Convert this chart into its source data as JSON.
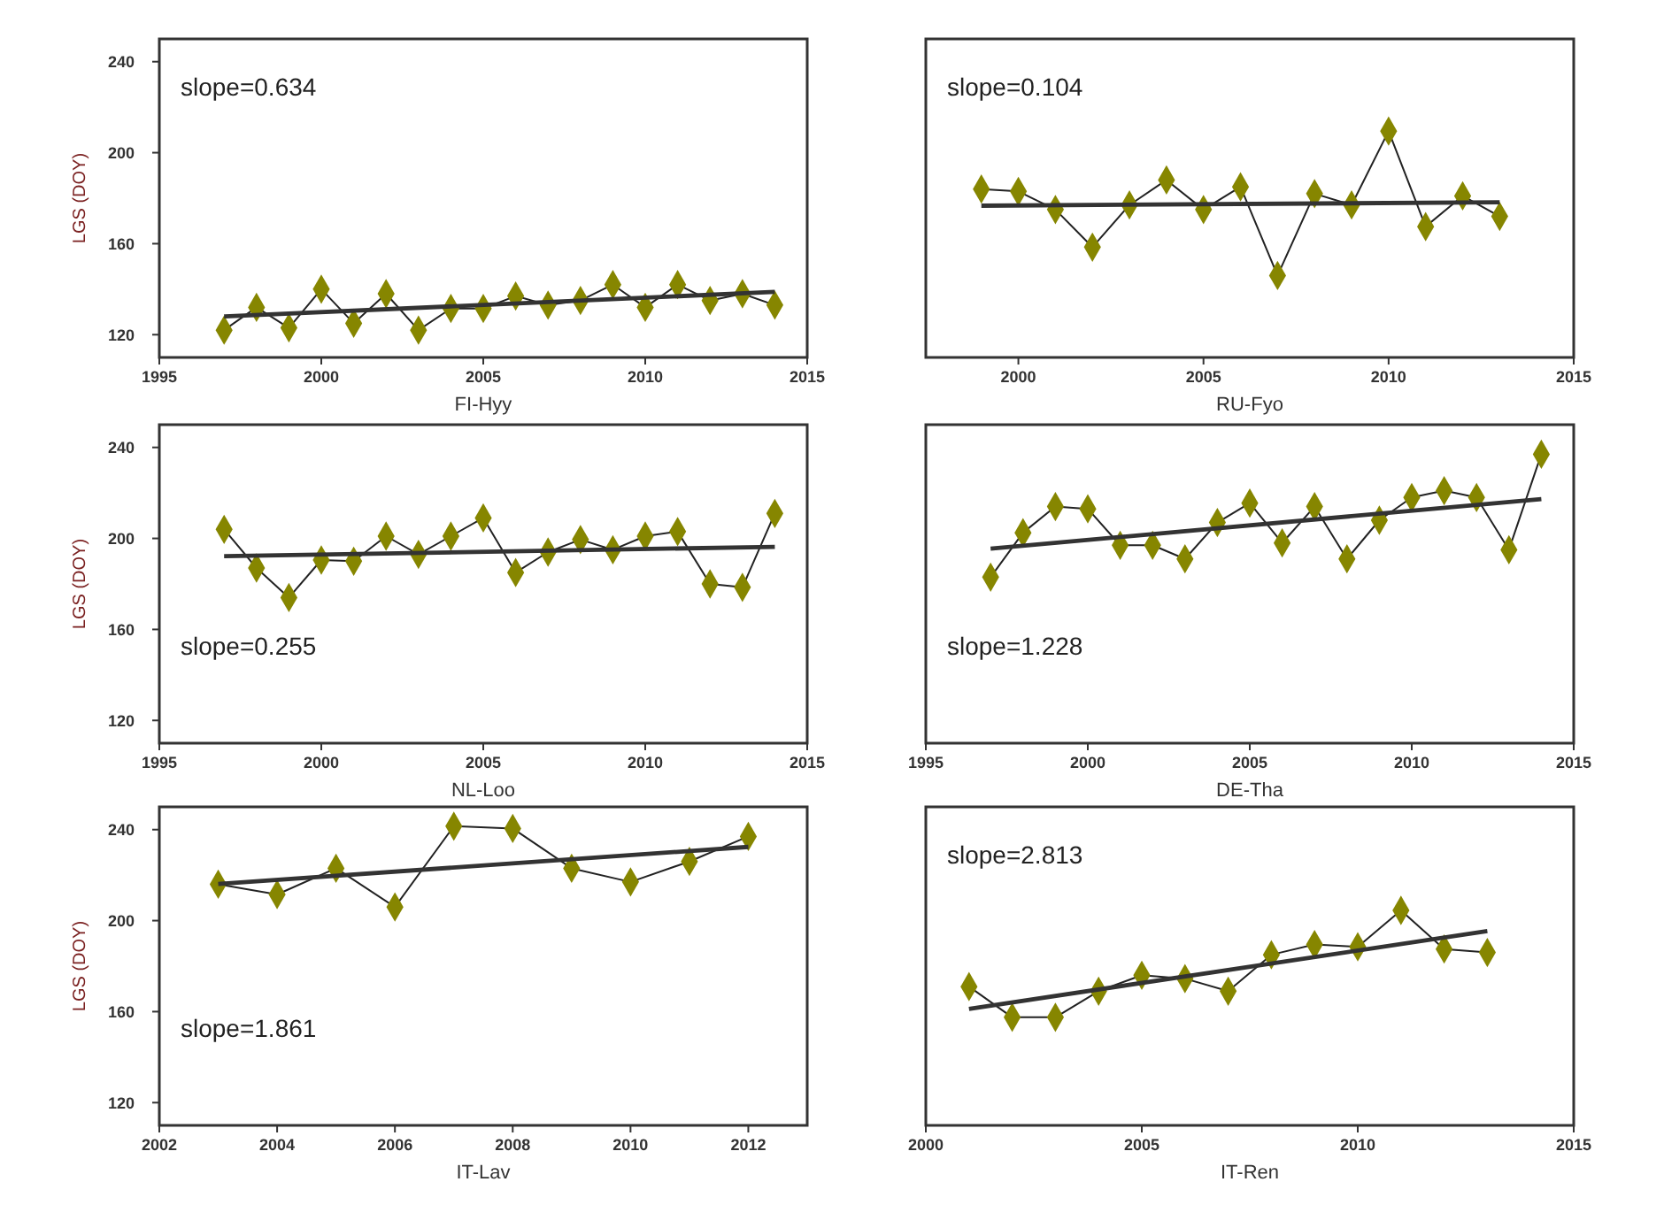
{
  "chart_data": [
    {
      "type": "line",
      "xlabel": "FI-Hyy",
      "ylabel": "LGS (DOY)",
      "annotations": [
        "slope=0.634"
      ],
      "xlim": [
        1995,
        2015
      ],
      "xticks": [
        1995,
        2000,
        2005,
        2010,
        2015
      ],
      "ylim": [
        110,
        250
      ],
      "yticks": [
        120,
        160,
        200,
        240
      ],
      "marker": "diamond",
      "series": [
        {
          "x": [
            1997,
            1998,
            1999,
            2000,
            2001,
            2002,
            2003,
            2004,
            2005,
            2006,
            2007,
            2008,
            2009,
            2010,
            2011,
            2012,
            2013,
            2014
          ],
          "values": [
            122,
            132,
            123,
            140,
            125,
            138,
            122,
            131.5,
            131.5,
            137,
            133,
            135,
            142,
            132,
            142,
            135,
            138,
            133
          ],
          "color": "#868600"
        },
        {
          "x": [
            1997,
            2014
          ],
          "values": [
            128,
            138.8
          ],
          "color": "#333333",
          "marker": "none"
        }
      ]
    },
    {
      "type": "line",
      "xlabel": "RU-Fyo",
      "annotations": [
        "slope=0.104"
      ],
      "xlim": [
        1997.5,
        2015
      ],
      "xticks": [
        2000,
        2005,
        2010,
        2015
      ],
      "ylim": [
        110,
        250
      ],
      "tick_labels": "x",
      "marker": "diamond",
      "series": [
        {
          "x": [
            1999,
            2000,
            2001,
            2002,
            2003,
            2004,
            2005,
            2006,
            2007,
            2008,
            2009,
            2010,
            2011,
            2012,
            2013
          ],
          "values": [
            184,
            183,
            175,
            158.5,
            177,
            188,
            175,
            185,
            146,
            182,
            177,
            209.5,
            167.5,
            181,
            172
          ],
          "color": "#868600"
        },
        {
          "x": [
            1999,
            2013
          ],
          "values": [
            176.7,
            178.2
          ],
          "color": "#333333",
          "marker": "none"
        }
      ]
    },
    {
      "type": "line",
      "xlabel": "NL-Loo",
      "ylabel": "LGS (DOY)",
      "annotations": [
        "slope=0.255"
      ],
      "xlim": [
        1995,
        2015
      ],
      "xticks": [
        1995,
        2000,
        2005,
        2010,
        2015
      ],
      "ylim": [
        110,
        250
      ],
      "yticks": [
        120,
        160,
        200,
        240
      ],
      "marker": "diamond",
      "series": [
        {
          "x": [
            1997,
            1998,
            1999,
            2000,
            2001,
            2002,
            2003,
            2004,
            2005,
            2006,
            2007,
            2008,
            2009,
            2010,
            2011,
            2012,
            2013,
            2014
          ],
          "values": [
            204,
            187,
            174,
            190.5,
            190,
            201,
            193,
            201,
            209,
            185,
            194,
            199.5,
            195,
            201,
            203,
            180,
            178.5,
            211
          ],
          "color": "#868600"
        },
        {
          "x": [
            1997,
            2014
          ],
          "values": [
            192.2,
            196.3
          ],
          "color": "#333333",
          "marker": "none"
        }
      ]
    },
    {
      "type": "line",
      "xlabel": "DE-Tha",
      "annotations": [
        "slope=1.228"
      ],
      "xlim": [
        1995,
        2015
      ],
      "xticks": [
        1995,
        2000,
        2005,
        2010,
        2015
      ],
      "ylim": [
        110,
        250
      ],
      "tick_labels": "x",
      "marker": "diamond",
      "series": [
        {
          "x": [
            1997,
            1998,
            1999,
            2000,
            2001,
            2002,
            2003,
            2004,
            2005,
            2006,
            2007,
            2008,
            2009,
            2010,
            2011,
            2012,
            2013,
            2014
          ],
          "values": [
            183,
            202.5,
            214,
            213,
            197,
            197,
            191,
            207,
            215.5,
            198,
            214,
            191,
            208,
            218,
            221,
            218,
            195,
            237
          ],
          "color": "#868600"
        },
        {
          "x": [
            1997,
            2014
          ],
          "values": [
            195.5,
            217.3
          ],
          "color": "#333333",
          "marker": "none"
        }
      ]
    },
    {
      "type": "line",
      "xlabel": "IT-Lav",
      "ylabel": "LGS (DOY)",
      "annotations": [
        "slope=1.861"
      ],
      "xlim": [
        2002,
        2013
      ],
      "xticks": [
        2002,
        2004,
        2006,
        2008,
        2010,
        2012
      ],
      "ylim": [
        110,
        250
      ],
      "yticks": [
        120,
        160,
        200,
        240
      ],
      "marker": "diamond",
      "series": [
        {
          "x": [
            2003,
            2004,
            2005,
            2006,
            2007,
            2008,
            2009,
            2010,
            2011,
            2012
          ],
          "values": [
            216,
            211.5,
            223,
            206,
            241.5,
            240.5,
            223,
            217,
            226,
            237
          ],
          "color": "#868600"
        },
        {
          "x": [
            2003,
            2012
          ],
          "values": [
            216.1,
            232.4
          ],
          "color": "#333333",
          "marker": "none"
        }
      ]
    },
    {
      "type": "line",
      "xlabel": "IT-Ren",
      "annotations": [
        "slope=2.813"
      ],
      "xlim": [
        2000,
        2015
      ],
      "xticks": [
        2000,
        2005,
        2010,
        2015
      ],
      "ylim": [
        110,
        250
      ],
      "tick_labels": "x",
      "marker": "diamond",
      "series": [
        {
          "x": [
            2001,
            2002,
            2003,
            2004,
            2005,
            2006,
            2007,
            2008,
            2009,
            2010,
            2011,
            2012,
            2013
          ],
          "values": [
            171,
            157.5,
            157.5,
            169,
            176,
            174.5,
            169,
            185,
            189.5,
            188.5,
            204.5,
            187.5,
            186
          ],
          "color": "#868600"
        },
        {
          "x": [
            2001,
            2013
          ],
          "values": [
            161.2,
            195.4
          ],
          "color": "#333333",
          "marker": "none"
        }
      ]
    }
  ]
}
